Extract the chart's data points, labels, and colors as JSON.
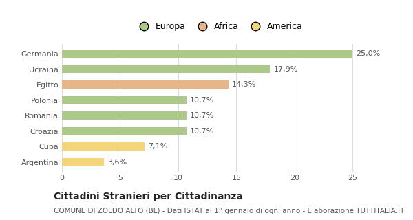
{
  "categories": [
    "Germania",
    "Ucraina",
    "Egitto",
    "Polonia",
    "Romania",
    "Croazia",
    "Cuba",
    "Argentina"
  ],
  "values": [
    25.0,
    17.9,
    14.3,
    10.7,
    10.7,
    10.7,
    7.1,
    3.6
  ],
  "labels": [
    "25,0%",
    "17,9%",
    "14,3%",
    "10,7%",
    "10,7%",
    "10,7%",
    "7,1%",
    "3,6%"
  ],
  "colors": [
    "#adc98a",
    "#adc98a",
    "#e8b48a",
    "#adc98a",
    "#adc98a",
    "#adc98a",
    "#f5d57a",
    "#f5d57a"
  ],
  "legend": [
    {
      "label": "Europa",
      "color": "#adc98a"
    },
    {
      "label": "Africa",
      "color": "#e8b48a"
    },
    {
      "label": "America",
      "color": "#f5d57a"
    }
  ],
  "xlim": [
    0,
    27
  ],
  "xticks": [
    0,
    5,
    10,
    15,
    20,
    25
  ],
  "title": "Cittadini Stranieri per Cittadinanza",
  "subtitle": "COMUNE DI ZOLDO ALTO (BL) - Dati ISTAT al 1° gennaio di ogni anno - Elaborazione TUTTITALIA.IT",
  "background_color": "#ffffff",
  "grid_color": "#dddddd",
  "bar_height": 0.5,
  "title_fontsize": 10,
  "subtitle_fontsize": 7.5,
  "label_fontsize": 8,
  "tick_fontsize": 8,
  "legend_fontsize": 9
}
